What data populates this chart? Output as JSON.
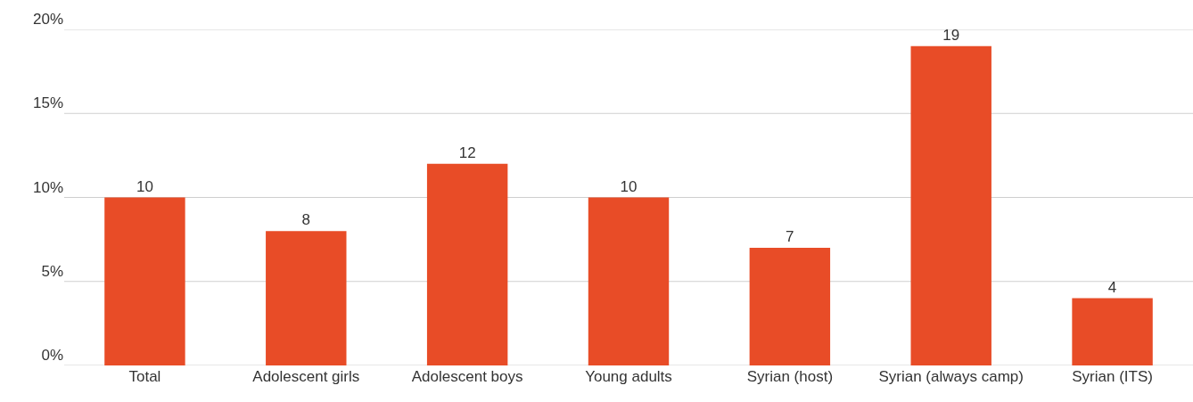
{
  "chart_data": {
    "type": "bar",
    "categories": [
      "Total",
      "Adolescent girls",
      "Adolescent boys",
      "Young adults",
      "Syrian (host)",
      "Syrian (always camp)",
      "Syrian (ITS)"
    ],
    "values": [
      10,
      8,
      12,
      10,
      7,
      19,
      4
    ],
    "color": "#e84c27",
    "ylim": [
      0,
      20
    ],
    "yticks": [
      {
        "value": 0,
        "label": "0%"
      },
      {
        "value": 5,
        "label": "5%"
      },
      {
        "value": 10,
        "label": "10%"
      },
      {
        "value": 15,
        "label": "15%"
      },
      {
        "value": 20,
        "label": "20%"
      }
    ],
    "grid": "y",
    "data_labels": true
  }
}
